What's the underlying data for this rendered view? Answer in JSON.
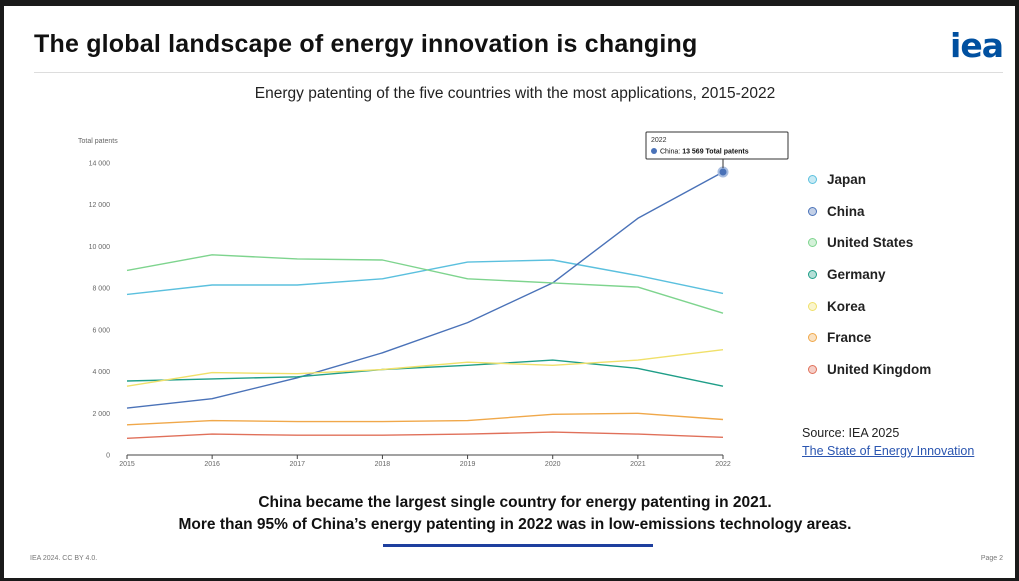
{
  "slide": {
    "title": "The global landscape of energy innovation is changing",
    "logo": "iea",
    "caption_line1": "China became the largest single country for energy patenting in 2021.",
    "caption_line2": "More than 95% of China’s energy patenting in 2022 was in low-emissions technology areas.",
    "footer_left": "IEA 2024. CC BY 4.0.",
    "footer_right": "Page 2",
    "source_label": "Source: IEA 2025",
    "source_link": "The State of Energy Innovation"
  },
  "chart_data": {
    "type": "line",
    "title": "Energy patenting of the five countries with the most applications, 2015-2022",
    "ylabel": "Total patents",
    "xlabel": "",
    "x": [
      "2015",
      "2016",
      "2017",
      "2018",
      "2019",
      "2020",
      "2021",
      "2022"
    ],
    "ylim": [
      0,
      14000
    ],
    "yticks": [
      0,
      2000,
      4000,
      6000,
      8000,
      10000,
      12000,
      14000
    ],
    "ytick_labels": [
      "0",
      "2 000",
      "4 000",
      "6 000",
      "8 000",
      "10 000",
      "12 000",
      "14 000"
    ],
    "grid": false,
    "legend_position": "right",
    "series": [
      {
        "name": "Japan",
        "color": "#5bc0de",
        "values": [
          7700,
          8150,
          8150,
          8450,
          9250,
          9350,
          8600,
          7750
        ]
      },
      {
        "name": "China",
        "color": "#4a72b8",
        "values": [
          2250,
          2700,
          3700,
          4900,
          6350,
          8250,
          11350,
          13569
        ]
      },
      {
        "name": "United States",
        "color": "#7ed48e",
        "values": [
          8850,
          9600,
          9400,
          9350,
          8450,
          8250,
          8050,
          6800
        ]
      },
      {
        "name": "Germany",
        "color": "#1f9e88",
        "values": [
          3550,
          3650,
          3750,
          4100,
          4300,
          4550,
          4150,
          3300
        ]
      },
      {
        "name": "Korea",
        "color": "#f0e06a",
        "values": [
          3300,
          3950,
          3900,
          4100,
          4450,
          4300,
          4550,
          5050
        ]
      },
      {
        "name": "France",
        "color": "#f0a84a",
        "values": [
          1450,
          1650,
          1600,
          1600,
          1650,
          1950,
          2000,
          1700
        ]
      },
      {
        "name": "United Kingdom",
        "color": "#e0705a",
        "values": [
          800,
          1000,
          950,
          950,
          1000,
          1100,
          1000,
          850
        ]
      }
    ],
    "tooltip": {
      "year": "2022",
      "series": "China",
      "value_text": "13 569",
      "suffix": "Total patents"
    }
  }
}
